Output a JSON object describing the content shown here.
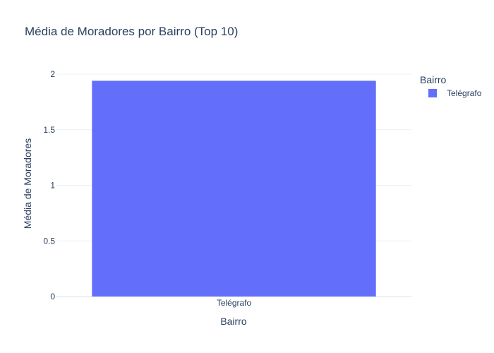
{
  "chart_data": {
    "type": "bar",
    "title": "Média de Moradores por Bairro (Top 10)",
    "xlabel": "Bairro",
    "ylabel": "Média de Moradores",
    "categories": [
      "Telégrafo"
    ],
    "series": [
      {
        "name": "Telégrafo",
        "values": [
          1.94
        ]
      }
    ],
    "ylim": [
      0,
      2
    ],
    "yticks": [
      0,
      0.5,
      1,
      1.5,
      2
    ],
    "ytick_labels": [
      "0",
      "0.5",
      "1",
      "1.5",
      "2"
    ],
    "grid": true,
    "legend": {
      "title": "Bairro",
      "placement": "top-right",
      "items": [
        "Telégrafo"
      ]
    },
    "colors": {
      "series": [
        "#636efa"
      ],
      "text": "#2a3f5f",
      "grid": "#ebf0f8"
    }
  }
}
